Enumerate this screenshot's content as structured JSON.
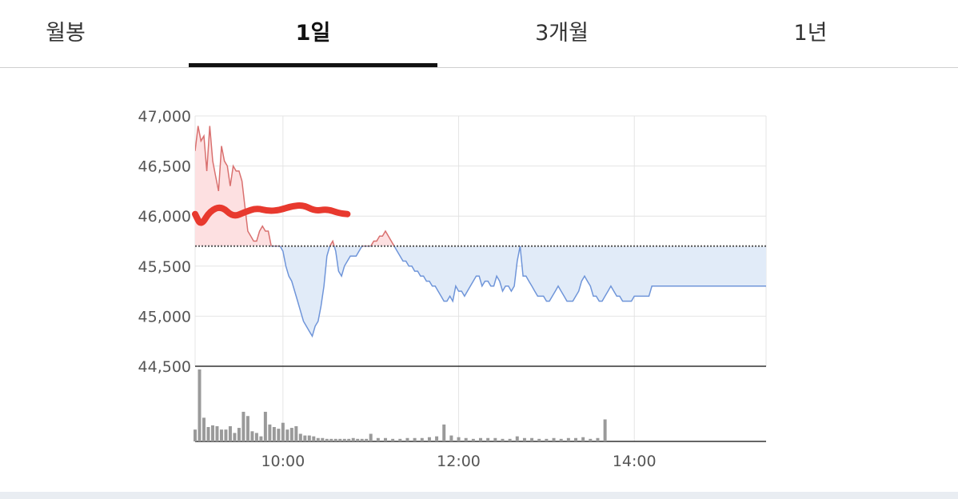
{
  "tabs": [
    {
      "label": "월봉",
      "active": false
    },
    {
      "label": "1일",
      "active": true
    },
    {
      "label": "3개월",
      "active": false
    },
    {
      "label": "1년",
      "active": false
    }
  ],
  "chart_data": {
    "type": "area",
    "reference_price": 45700,
    "ylim": [
      44500,
      47000
    ],
    "y_ticks": [
      "47,000",
      "46,500",
      "46,000",
      "45,500",
      "45,000",
      "44,500"
    ],
    "y_tick_values": [
      47000,
      46500,
      46000,
      45500,
      45000,
      44500
    ],
    "x_tick_labels": [
      "10:00",
      "12:00",
      "14:00"
    ],
    "x_tick_times": [
      "10:00",
      "12:00",
      "14:00"
    ],
    "x_range": [
      "09:00",
      "15:30"
    ],
    "grid": true,
    "colors": {
      "above_line": "#d9706f",
      "above_fill": "#fde0e1",
      "below_line": "#6f95d9",
      "below_fill": "#e1ebf8",
      "reference_line": "#555555",
      "volume_bar": "#9a9a9a",
      "annotation": "#e8392e",
      "grid": "#e4e4e4"
    },
    "price": {
      "time": [
        "09:00",
        "09:02",
        "09:04",
        "09:06",
        "09:08",
        "09:10",
        "09:12",
        "09:14",
        "09:16",
        "09:18",
        "09:20",
        "09:22",
        "09:24",
        "09:26",
        "09:28",
        "09:30",
        "09:32",
        "09:34",
        "09:36",
        "09:38",
        "09:40",
        "09:42",
        "09:44",
        "09:46",
        "09:48",
        "09:50",
        "09:52",
        "09:54",
        "09:56",
        "09:58",
        "10:00",
        "10:02",
        "10:04",
        "10:06",
        "10:08",
        "10:10",
        "10:12",
        "10:14",
        "10:16",
        "10:18",
        "10:20",
        "10:22",
        "10:24",
        "10:26",
        "10:28",
        "10:30",
        "10:32",
        "10:34",
        "10:36",
        "10:38",
        "10:40",
        "10:42",
        "10:44",
        "10:46",
        "10:48",
        "10:50",
        "10:52",
        "10:54",
        "10:56",
        "10:58",
        "11:00",
        "11:02",
        "11:04",
        "11:06",
        "11:08",
        "11:10",
        "11:12",
        "11:14",
        "11:16",
        "11:18",
        "11:20",
        "11:22",
        "11:24",
        "11:26",
        "11:28",
        "11:30",
        "11:32",
        "11:34",
        "11:36",
        "11:38",
        "11:40",
        "11:42",
        "11:44",
        "11:46",
        "11:48",
        "11:50",
        "11:52",
        "11:54",
        "11:56",
        "11:58",
        "12:00",
        "12:02",
        "12:04",
        "12:06",
        "12:08",
        "12:10",
        "12:12",
        "12:14",
        "12:16",
        "12:18",
        "12:20",
        "12:22",
        "12:24",
        "12:26",
        "12:28",
        "12:30",
        "12:32",
        "12:34",
        "12:36",
        "12:38",
        "12:40",
        "12:42",
        "12:44",
        "12:46",
        "12:48",
        "12:50",
        "12:52",
        "12:54",
        "12:56",
        "12:58",
        "13:00",
        "13:02",
        "13:04",
        "13:06",
        "13:08",
        "13:10",
        "13:12",
        "13:14",
        "13:16",
        "13:18",
        "13:20",
        "13:22",
        "13:24",
        "13:26",
        "13:28",
        "13:30",
        "13:32",
        "13:34",
        "13:36",
        "13:38",
        "13:40",
        "13:42",
        "13:44",
        "13:46",
        "13:48",
        "13:50",
        "13:52",
        "13:54",
        "13:56",
        "13:58",
        "14:00",
        "14:02",
        "14:04",
        "14:06",
        "14:08",
        "14:10",
        "14:12",
        "14:14",
        "14:16",
        "14:18",
        "14:20",
        "14:22",
        "14:24",
        "14:26",
        "14:28",
        "14:30",
        "14:32",
        "14:34",
        "14:36",
        "14:38",
        "14:40",
        "14:42",
        "14:44",
        "14:46",
        "14:48",
        "14:50",
        "14:52",
        "14:54",
        "14:56",
        "14:58",
        "15:00",
        "15:02",
        "15:04",
        "15:06",
        "15:08",
        "15:10",
        "15:12",
        "15:14",
        "15:16",
        "15:18",
        "15:20",
        "15:22",
        "15:24",
        "15:26",
        "15:28",
        "15:30"
      ],
      "values": [
        46650,
        46900,
        46750,
        46800,
        46450,
        46900,
        46550,
        46400,
        46250,
        46700,
        46550,
        46500,
        46300,
        46500,
        46450,
        46450,
        46350,
        46100,
        45850,
        45800,
        45750,
        45750,
        45850,
        45900,
        45850,
        45850,
        45700,
        45700,
        45700,
        45700,
        45650,
        45500,
        45400,
        45350,
        45250,
        45150,
        45050,
        44950,
        44900,
        44850,
        44800,
        44900,
        44950,
        45100,
        45300,
        45600,
        45700,
        45750,
        45650,
        45450,
        45400,
        45500,
        45550,
        45600,
        45600,
        45600,
        45650,
        45700,
        45700,
        45700,
        45700,
        45750,
        45750,
        45800,
        45800,
        45850,
        45800,
        45750,
        45700,
        45650,
        45600,
        45550,
        45550,
        45500,
        45500,
        45450,
        45450,
        45400,
        45400,
        45350,
        45350,
        45300,
        45300,
        45250,
        45200,
        45150,
        45150,
        45200,
        45150,
        45300,
        45250,
        45250,
        45200,
        45250,
        45300,
        45350,
        45400,
        45400,
        45300,
        45350,
        45350,
        45300,
        45300,
        45400,
        45350,
        45250,
        45300,
        45300,
        45250,
        45300,
        45550,
        45700,
        45400,
        45400,
        45350,
        45300,
        45250,
        45200,
        45200,
        45200,
        45150,
        45150,
        45200,
        45250,
        45300,
        45250,
        45200,
        45150,
        45150,
        45150,
        45200,
        45250,
        45350,
        45400,
        45350,
        45300,
        45200,
        45200,
        45150,
        45150,
        45200,
        45250,
        45300,
        45250,
        45200,
        45200,
        45150,
        45150,
        45150,
        45150,
        45200,
        45200,
        45200,
        45200,
        45200,
        45200,
        45300,
        45300,
        45300,
        45300,
        45300,
        45300,
        45300,
        45300,
        45300,
        45300,
        45300,
        45300,
        45300,
        45300,
        45300,
        45300,
        45300,
        45300,
        45300,
        45300,
        45300,
        45300,
        45300,
        45300,
        45300,
        45300,
        45300,
        45300,
        45300,
        45300,
        45300,
        45300,
        45300,
        45300,
        45300,
        45300,
        45300,
        45300,
        45300,
        45300
      ]
    },
    "volume": {
      "time": [
        "09:00",
        "09:03",
        "09:06",
        "09:09",
        "09:12",
        "09:15",
        "09:18",
        "09:21",
        "09:24",
        "09:27",
        "09:30",
        "09:33",
        "09:36",
        "09:39",
        "09:42",
        "09:45",
        "09:48",
        "09:51",
        "09:54",
        "09:57",
        "10:00",
        "10:03",
        "10:06",
        "10:09",
        "10:12",
        "10:15",
        "10:18",
        "10:21",
        "10:24",
        "10:27",
        "10:30",
        "10:33",
        "10:36",
        "10:39",
        "10:42",
        "10:45",
        "10:48",
        "10:51",
        "10:54",
        "10:57",
        "11:00",
        "11:05",
        "11:10",
        "11:15",
        "11:20",
        "11:25",
        "11:30",
        "11:35",
        "11:40",
        "11:45",
        "11:50",
        "11:55",
        "12:00",
        "12:05",
        "12:10",
        "12:15",
        "12:20",
        "12:25",
        "12:30",
        "12:35",
        "12:40",
        "12:45",
        "12:50",
        "12:55",
        "13:00",
        "13:05",
        "13:10",
        "13:15",
        "13:20",
        "13:25",
        "13:30",
        "13:35",
        "13:40",
        "13:45",
        "13:50",
        "13:55",
        "14:00",
        "14:05",
        "14:10",
        "14:15",
        "14:20",
        "14:25",
        "14:30",
        "14:35",
        "14:40",
        "14:45",
        "14:50",
        "14:55",
        "15:00",
        "15:05",
        "15:10",
        "15:15",
        "15:20",
        "15:25",
        "15:30"
      ],
      "values": [
        14,
        85,
        28,
        17,
        19,
        18,
        14,
        14,
        18,
        10,
        16,
        35,
        30,
        12,
        10,
        6,
        35,
        20,
        17,
        15,
        22,
        14,
        16,
        18,
        9,
        7,
        7,
        6,
        4,
        4,
        3,
        3,
        3,
        3,
        3,
        3,
        4,
        3,
        3,
        3,
        9,
        4,
        4,
        3,
        3,
        4,
        4,
        4,
        5,
        6,
        20,
        7,
        5,
        4,
        3,
        4,
        4,
        4,
        3,
        3,
        6,
        4,
        4,
        3,
        3,
        4,
        3,
        4,
        4,
        5,
        3,
        4,
        26,
        0,
        0,
        0,
        0,
        0,
        0,
        0,
        0,
        0,
        0,
        0,
        0,
        0,
        0,
        0,
        0,
        0,
        0,
        0,
        0,
        0,
        0
      ]
    },
    "annotation": {
      "type": "freehand-stroke",
      "time": [
        "09:00",
        "09:04",
        "09:10",
        "09:18",
        "09:26",
        "09:34",
        "09:42",
        "09:50",
        "09:58",
        "10:06",
        "10:14",
        "10:22",
        "10:30",
        "10:38",
        "10:44"
      ],
      "values": [
        46020,
        45900,
        46050,
        46100,
        45990,
        46040,
        46080,
        46050,
        46060,
        46100,
        46110,
        46050,
        46070,
        46030,
        46020
      ]
    }
  }
}
